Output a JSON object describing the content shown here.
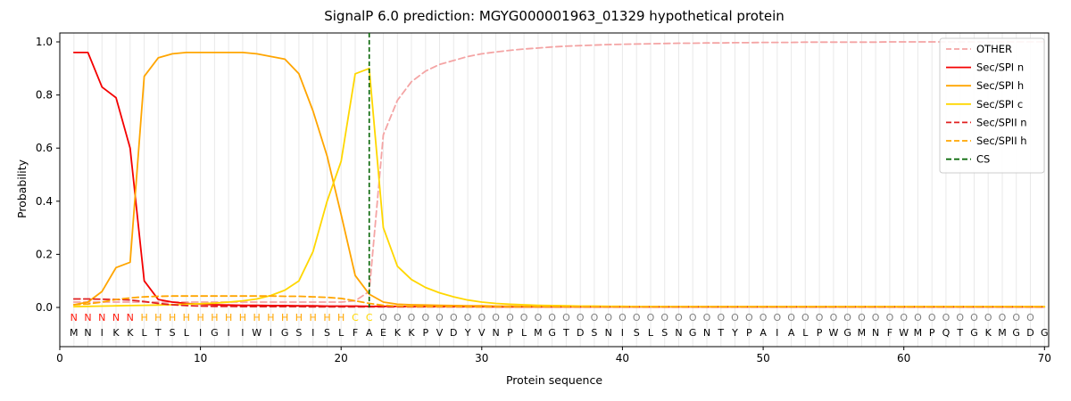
{
  "chart_data": {
    "type": "line",
    "title": "SignalP 6.0 prediction: MGYG000001963_01329 hypothetical protein",
    "xlabel": "Protein sequence",
    "ylabel": "Probability",
    "xlim": [
      0,
      70.3
    ],
    "ylim": [
      -0.15,
      1.03
    ],
    "x_ticks": [
      0,
      10,
      20,
      30,
      40,
      50,
      60,
      70
    ],
    "y_ticks": [
      0.0,
      0.2,
      0.4,
      0.6,
      0.8,
      1.0
    ],
    "grid": "vertical-per-residue",
    "legend_position": "upper right",
    "cs_position": 22,
    "sequence": "MNIKKLTSLIGIIWIGSISLFAEKKPVDYVNPLMGTDSNISLSNGNTYPAIALPWGMNFWMPQTGKMGDG",
    "regions": "NNNNNHHHHHHHHHHHHHHHCCOOOOOOOOOOOOOOOOOOOOOOOOOOOOOOOOOOOOOOOOOOOOOOO",
    "region_colors": {
      "N": "#ff1a0d",
      "H": "#ffa500",
      "C": "#ffd700",
      "O": "#7f7f7f"
    },
    "sequence_color": "#000000",
    "colors": {
      "grid": "#e9e9e9",
      "frame": "#000000",
      "legend_border": "#cccccc"
    },
    "series": [
      {
        "name": "OTHER",
        "color": "#f4a4a4",
        "dash": true,
        "values": [
          0.02,
          0.02,
          0.02,
          0.02,
          0.02,
          0.02,
          0.02,
          0.02,
          0.02,
          0.02,
          0.02,
          0.02,
          0.02,
          0.02,
          0.02,
          0.02,
          0.02,
          0.02,
          0.02,
          0.02,
          0.025,
          0.06,
          0.65,
          0.78,
          0.85,
          0.89,
          0.915,
          0.93,
          0.945,
          0.955,
          0.962,
          0.968,
          0.973,
          0.977,
          0.981,
          0.984,
          0.986,
          0.988,
          0.99,
          0.991,
          0.992,
          0.993,
          0.994,
          0.995,
          0.995,
          0.996,
          0.996,
          0.997,
          0.997,
          0.998,
          0.998,
          0.998,
          0.999,
          0.999,
          0.999,
          0.999,
          0.999,
          0.999,
          1.0,
          1.0,
          1.0,
          1.0,
          1.0,
          1.0,
          1.0,
          1.0,
          1.0,
          1.0,
          1.0,
          1.0
        ]
      },
      {
        "name": "Sec/SPI n",
        "color": "#f40000",
        "dash": false,
        "values": [
          0.96,
          0.96,
          0.83,
          0.79,
          0.6,
          0.1,
          0.03,
          0.02,
          0.015,
          0.012,
          0.01,
          0.009,
          0.008,
          0.008,
          0.007,
          0.007,
          0.006,
          0.006,
          0.005,
          0.005,
          0.005,
          0.004,
          0.004,
          0.004,
          0.003,
          0.003,
          0.003,
          0.003,
          0.003,
          0.003,
          0.002,
          0.002,
          0.002,
          0.002,
          0.002,
          0.002,
          0.002,
          0.002,
          0.002,
          0.002,
          0.002,
          0.002,
          0.002,
          0.002,
          0.002,
          0.002,
          0.002,
          0.002,
          0.002,
          0.002,
          0.002,
          0.002,
          0.002,
          0.002,
          0.002,
          0.002,
          0.002,
          0.002,
          0.002,
          0.002,
          0.002,
          0.002,
          0.002,
          0.002,
          0.002,
          0.002,
          0.002,
          0.002,
          0.002,
          0.002
        ]
      },
      {
        "name": "Sec/SPI h",
        "color": "#ffa500",
        "dash": false,
        "values": [
          0.01,
          0.02,
          0.06,
          0.15,
          0.17,
          0.87,
          0.94,
          0.955,
          0.96,
          0.96,
          0.96,
          0.96,
          0.96,
          0.955,
          0.945,
          0.935,
          0.88,
          0.74,
          0.57,
          0.35,
          0.12,
          0.05,
          0.02,
          0.012,
          0.01,
          0.009,
          0.008,
          0.007,
          0.006,
          0.006,
          0.005,
          0.005,
          0.004,
          0.004,
          0.004,
          0.003,
          0.003,
          0.003,
          0.003,
          0.003,
          0.003,
          0.003,
          0.003,
          0.003,
          0.003,
          0.003,
          0.003,
          0.003,
          0.003,
          0.003,
          0.003,
          0.003,
          0.003,
          0.003,
          0.003,
          0.003,
          0.003,
          0.003,
          0.003,
          0.003,
          0.003,
          0.003,
          0.003,
          0.003,
          0.003,
          0.003,
          0.003,
          0.003,
          0.003,
          0.003
        ]
      },
      {
        "name": "Sec/SPI c",
        "color": "#ffd700",
        "dash": false,
        "values": [
          0.003,
          0.004,
          0.005,
          0.006,
          0.007,
          0.008,
          0.009,
          0.01,
          0.012,
          0.014,
          0.016,
          0.02,
          0.025,
          0.032,
          0.045,
          0.065,
          0.1,
          0.21,
          0.4,
          0.55,
          0.88,
          0.9,
          0.3,
          0.155,
          0.105,
          0.075,
          0.055,
          0.04,
          0.028,
          0.02,
          0.015,
          0.012,
          0.01,
          0.008,
          0.007,
          0.006,
          0.005,
          0.005,
          0.004,
          0.004,
          0.003,
          0.003,
          0.003,
          0.003,
          0.003,
          0.003,
          0.003,
          0.003,
          0.003,
          0.003,
          0.003,
          0.003,
          0.003,
          0.003,
          0.003,
          0.003,
          0.003,
          0.003,
          0.003,
          0.003,
          0.003,
          0.003,
          0.003,
          0.003,
          0.003,
          0.003,
          0.003,
          0.003,
          0.003,
          0.003
        ]
      },
      {
        "name": "Sec/SPII n",
        "color": "#e02020",
        "dash": true,
        "values": [
          0.032,
          0.032,
          0.031,
          0.03,
          0.028,
          0.022,
          0.015,
          0.01,
          0.007,
          0.005,
          0.004,
          0.004,
          0.003,
          0.003,
          0.003,
          0.003,
          0.003,
          0.002,
          0.002,
          0.002,
          0.002,
          0.002,
          0.002,
          0.002,
          0.002,
          0.002,
          0.002,
          0.002,
          0.002,
          0.002,
          0.002,
          0.002,
          0.002,
          0.002,
          0.002,
          0.002,
          0.002,
          0.002,
          0.002,
          0.002,
          0.002,
          0.002,
          0.002,
          0.002,
          0.002,
          0.002,
          0.002,
          0.002,
          0.002,
          0.002,
          0.002,
          0.002,
          0.002,
          0.002,
          0.002,
          0.002,
          0.002,
          0.002,
          0.002,
          0.002,
          0.002,
          0.002,
          0.002,
          0.002,
          0.002,
          0.002,
          0.002,
          0.002,
          0.002,
          0.002
        ]
      },
      {
        "name": "Sec/SPII h",
        "color": "#ffa500",
        "dash": true,
        "values": [
          0.01,
          0.013,
          0.02,
          0.03,
          0.036,
          0.04,
          0.042,
          0.043,
          0.043,
          0.043,
          0.043,
          0.043,
          0.043,
          0.043,
          0.043,
          0.042,
          0.042,
          0.04,
          0.038,
          0.034,
          0.025,
          0.015,
          0.008,
          0.005,
          0.004,
          0.003,
          0.003,
          0.003,
          0.002,
          0.002,
          0.002,
          0.002,
          0.002,
          0.002,
          0.002,
          0.002,
          0.002,
          0.002,
          0.002,
          0.002,
          0.002,
          0.002,
          0.002,
          0.002,
          0.002,
          0.002,
          0.002,
          0.002,
          0.002,
          0.002,
          0.002,
          0.002,
          0.002,
          0.002,
          0.002,
          0.002,
          0.002,
          0.002,
          0.002,
          0.002,
          0.002,
          0.002,
          0.002,
          0.002,
          0.002,
          0.002,
          0.002,
          0.002,
          0.002,
          0.002
        ]
      },
      {
        "name": "CS",
        "color": "#006400",
        "dash": true,
        "vline": 22
      }
    ]
  }
}
